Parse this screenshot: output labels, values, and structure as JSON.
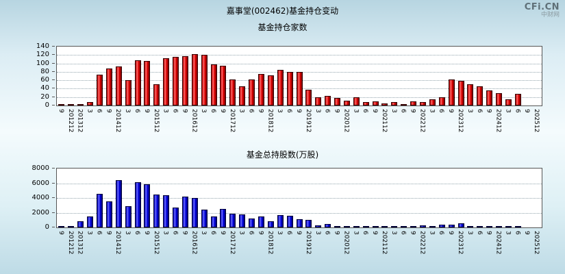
{
  "page": {
    "title": "嘉事堂(002462)基金持仓变动",
    "watermark": {
      "logo": "CFi.CN",
      "site": "中财网"
    }
  },
  "chart_data": [
    {
      "type": "bar",
      "title": "基金持仓家数",
      "xlabel": "",
      "ylabel": "",
      "ylim": [
        0,
        140
      ],
      "yticks": [
        0,
        20,
        40,
        60,
        80,
        100,
        120,
        140
      ],
      "grid": "dotted horizontal",
      "legend_position": "none",
      "colors": {
        "deep": "#b00000",
        "light": "#ff6a6a",
        "body": "#e00000",
        "dark": "#7a0000",
        "border": "#330000"
      },
      "categories": [
        "9",
        "201212",
        "201312",
        "3",
        "6",
        "9",
        "201412",
        "3",
        "6",
        "9",
        "201512",
        "3",
        "6",
        "9",
        "201612",
        "3",
        "6",
        "9",
        "201712",
        "3",
        "6",
        "9",
        "201812",
        "3",
        "6",
        "9",
        "201912",
        "3",
        "6",
        "9",
        "202012",
        "3",
        "6",
        "9",
        "202112",
        "3",
        "6",
        "9",
        "202212",
        "3",
        "6",
        "9",
        "202312",
        "3",
        "6",
        "9",
        "202412",
        "3",
        "6",
        "9",
        "202512"
      ],
      "values": [
        3,
        2,
        2,
        8,
        73,
        88,
        92,
        60,
        108,
        105,
        50,
        112,
        115,
        118,
        122,
        121,
        98,
        95,
        62,
        45,
        62,
        75,
        72,
        85,
        80,
        80,
        38,
        20,
        22,
        18,
        12,
        20,
        8,
        10,
        5,
        8,
        4,
        10,
        8,
        15,
        20,
        62,
        58,
        50,
        45,
        35,
        30,
        15,
        28,
        0,
        0
      ]
    },
    {
      "type": "bar",
      "title": "基金总持股数(万股)",
      "xlabel": "",
      "ylabel": "",
      "ylim": [
        0,
        8000
      ],
      "yticks": [
        0,
        2000,
        4000,
        6000,
        8000
      ],
      "grid": "dotted horizontal",
      "legend_position": "none",
      "colors": {
        "deep": "#0000b0",
        "light": "#6a6aff",
        "body": "#0000e0",
        "dark": "#00007a",
        "border": "#000033"
      },
      "categories": [
        "9",
        "201212",
        "201312",
        "3",
        "6",
        "9",
        "201412",
        "3",
        "6",
        "9",
        "201512",
        "3",
        "6",
        "9",
        "201612",
        "3",
        "6",
        "9",
        "201712",
        "3",
        "6",
        "9",
        "201812",
        "3",
        "6",
        "9",
        "201912",
        "3",
        "6",
        "9",
        "202012",
        "3",
        "6",
        "9",
        "202112",
        "3",
        "6",
        "9",
        "202212",
        "3",
        "6",
        "9",
        "202312",
        "3",
        "6",
        "9",
        "202412",
        "3",
        "6",
        "9",
        "202512"
      ],
      "values": [
        50,
        30,
        800,
        1500,
        4600,
        3500,
        6400,
        2900,
        6100,
        5900,
        4500,
        4400,
        2700,
        4200,
        4000,
        2400,
        1500,
        2500,
        1900,
        1800,
        1200,
        1500,
        800,
        1700,
        1600,
        1100,
        1000,
        300,
        500,
        200,
        150,
        200,
        100,
        150,
        100,
        100,
        150,
        100,
        300,
        200,
        350,
        400,
        600,
        150,
        100,
        80,
        60,
        100,
        50,
        0,
        0
      ]
    }
  ]
}
